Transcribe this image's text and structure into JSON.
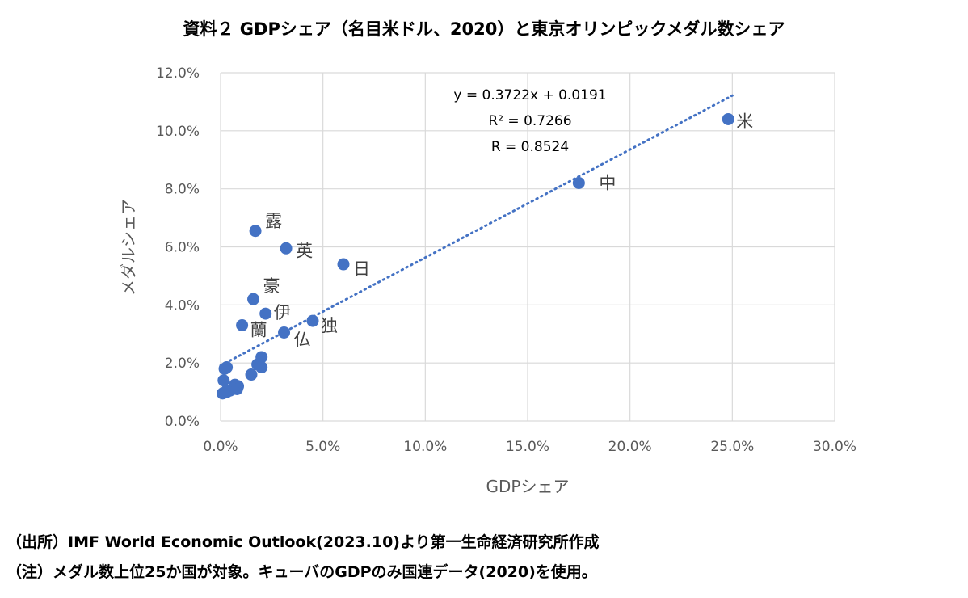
{
  "title": "資料２ GDPシェア（名目米ドル、2020）と東京オリンピックメダル数シェア",
  "notes": {
    "source": "（出所）IMF World Economic Outlook(2023.10)より第一生命経済研究所作成",
    "caveat": "（注）メダル数上位25か国が対象。キューバのGDPのみ国連データ(2020)を使用。"
  },
  "colors": {
    "marker": "#4472C4",
    "trendline": "#4472C4",
    "grid": "#D9D9D9"
  },
  "chart_data": {
    "type": "scatter",
    "xlabel": "GDPシェア",
    "ylabel": "メダルシェア",
    "xlim": [
      0,
      30
    ],
    "ylim": [
      0,
      12
    ],
    "x_ticks": [
      "0.0%",
      "5.0%",
      "10.0%",
      "15.0%",
      "20.0%",
      "25.0%",
      "30.0%"
    ],
    "y_ticks": [
      "0.0%",
      "2.0%",
      "4.0%",
      "6.0%",
      "8.0%",
      "10.0%",
      "12.0%"
    ],
    "grid": true,
    "units": "percent",
    "points": [
      {
        "x": 24.8,
        "y": 10.4,
        "label": "米"
      },
      {
        "x": 17.5,
        "y": 8.2,
        "label": "中"
      },
      {
        "x": 1.7,
        "y": 6.55,
        "label": "露"
      },
      {
        "x": 3.2,
        "y": 5.95,
        "label": "英"
      },
      {
        "x": 6.0,
        "y": 5.4,
        "label": "日"
      },
      {
        "x": 1.6,
        "y": 4.2,
        "label": "豪"
      },
      {
        "x": 2.2,
        "y": 3.7,
        "label": "伊"
      },
      {
        "x": 1.05,
        "y": 3.3,
        "label": "蘭"
      },
      {
        "x": 4.5,
        "y": 3.45,
        "label": "独"
      },
      {
        "x": 3.1,
        "y": 3.05,
        "label": "仏"
      },
      {
        "x": 2.0,
        "y": 2.2,
        "label": ""
      },
      {
        "x": 1.8,
        "y": 1.95,
        "label": ""
      },
      {
        "x": 2.0,
        "y": 1.85,
        "label": ""
      },
      {
        "x": 1.5,
        "y": 1.6,
        "label": ""
      },
      {
        "x": 0.2,
        "y": 1.8,
        "label": ""
      },
      {
        "x": 0.3,
        "y": 1.85,
        "label": ""
      },
      {
        "x": 0.15,
        "y": 1.4,
        "label": ""
      },
      {
        "x": 0.7,
        "y": 1.25,
        "label": ""
      },
      {
        "x": 0.85,
        "y": 1.2,
        "label": ""
      },
      {
        "x": 0.8,
        "y": 1.1,
        "label": ""
      },
      {
        "x": 0.45,
        "y": 1.05,
        "label": ""
      },
      {
        "x": 0.6,
        "y": 1.1,
        "label": ""
      },
      {
        "x": 0.3,
        "y": 1.0,
        "label": ""
      },
      {
        "x": 0.1,
        "y": 0.95,
        "label": ""
      },
      {
        "x": 0.3,
        "y": 1.05,
        "label": ""
      }
    ],
    "trendline": {
      "type": "linear",
      "slope": 0.3722,
      "intercept": 0.0191,
      "x_range": [
        0,
        25
      ],
      "style": "dotted",
      "annotations": [
        "y = 0.3722x + 0.0191",
        "R² = 0.7266",
        "R = 0.8524"
      ]
    }
  }
}
